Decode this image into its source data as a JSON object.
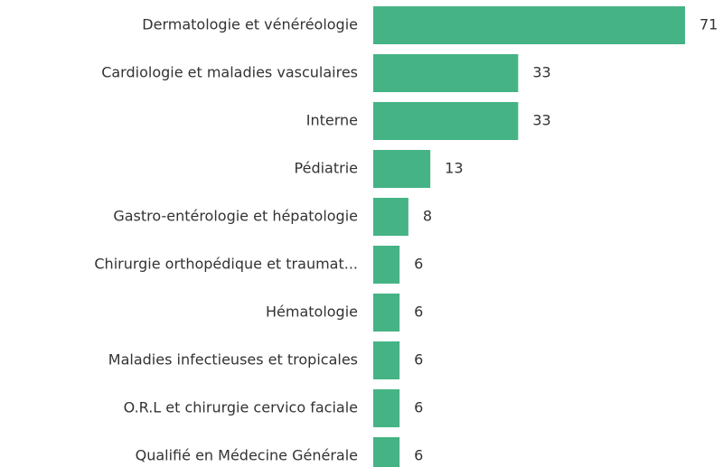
{
  "chart_data": {
    "type": "barh",
    "categories": [
      "Dermatologie et vénéréologie",
      "Cardiologie et maladies vasculaires",
      "Interne",
      "Pédiatrie",
      "Gastro-entérologie et hépatologie",
      "Chirurgie orthopédique et traumat...",
      "Hématologie",
      "Maladies infectieuses et tropicales",
      "O.R.L et chirurgie cervico faciale",
      "Qualifié en Médecine Générale"
    ],
    "values": [
      71,
      33,
      33,
      13,
      8,
      6,
      6,
      6,
      6,
      6
    ],
    "color": "#45b385"
  }
}
